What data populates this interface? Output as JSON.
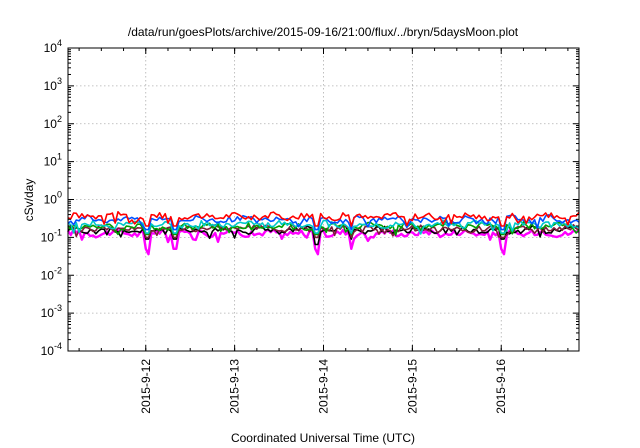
{
  "chart_data": {
    "type": "line",
    "title": "/data/run/goesPlots/archive/2015-09-16/21:00/flux/../bryn/5daysMoon.plot",
    "xlabel": "Coordinated Universal Time (UTC)",
    "ylabel": "cSv/day",
    "yscale": "log",
    "ylim": [
      0.0001,
      10000
    ],
    "y_ticks": [
      {
        "value": 0.0001,
        "base": "10",
        "exp": "-4"
      },
      {
        "value": 0.001,
        "base": "10",
        "exp": "-3"
      },
      {
        "value": 0.01,
        "base": "10",
        "exp": "-2"
      },
      {
        "value": 0.1,
        "base": "10",
        "exp": "-1"
      },
      {
        "value": 1,
        "base": "10",
        "exp": "0"
      },
      {
        "value": 10,
        "base": "10",
        "exp": "1"
      },
      {
        "value": 100,
        "base": "10",
        "exp": "2"
      },
      {
        "value": 1000,
        "base": "10",
        "exp": "3"
      },
      {
        "value": 10000,
        "base": "10",
        "exp": "4"
      }
    ],
    "xlim": [
      "2015-09-11T03:00",
      "2015-09-16T21:00"
    ],
    "x_ticks": [
      "2015-9-12",
      "2015-9-13",
      "2015-9-14",
      "2015-9-15",
      "2015-9-16"
    ],
    "grid": true,
    "series": [
      {
        "color": "#ff00ff",
        "baseline": 0.13,
        "dip": 0.05
      },
      {
        "color": "#000000",
        "baseline": 0.155,
        "dip": 0.09
      },
      {
        "color": "#7f1d3a",
        "baseline": 0.17,
        "dip": 0.1
      },
      {
        "color": "#00a000",
        "baseline": 0.195,
        "dip": 0.12
      },
      {
        "color": "#00c8c8",
        "baseline": 0.22,
        "dip": 0.13
      },
      {
        "color": "#0050ff",
        "baseline": 0.3,
        "dip": 0.16
      },
      {
        "color": "#ff0000",
        "baseline": 0.36,
        "dip": 0.2
      }
    ],
    "dip_times": [
      "2015-09-12T00:15",
      "2015-09-12T08:00",
      "2015-09-13T22:15",
      "2015-09-14T07:30",
      "2015-09-16T00:30"
    ]
  }
}
